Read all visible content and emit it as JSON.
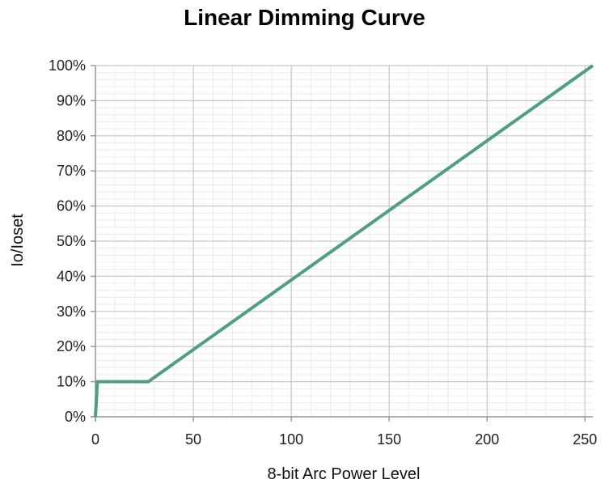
{
  "chart_data": {
    "type": "line",
    "title": "Linear Dimming Curve",
    "xlabel": "8-bit Arc Power Level",
    "ylabel": "Io/Ioset",
    "xlim": [
      0,
      254
    ],
    "ylim": [
      0,
      100
    ],
    "x_ticks": [
      0,
      50,
      100,
      150,
      200,
      250
    ],
    "y_ticks": [
      0,
      10,
      20,
      30,
      40,
      50,
      60,
      70,
      80,
      90,
      100
    ],
    "y_tick_format": "%",
    "grid": true,
    "legend": "none",
    "series": [
      {
        "color": "#4f9e85",
        "points": [
          [
            0,
            0
          ],
          [
            1,
            10
          ],
          [
            27,
            10
          ],
          [
            254,
            100
          ]
        ]
      }
    ]
  },
  "colors": {
    "line": "#4f9e85",
    "major_grid": "#c8c8c8",
    "minor_grid": "#ececec",
    "axis": "#9a9a9a"
  }
}
